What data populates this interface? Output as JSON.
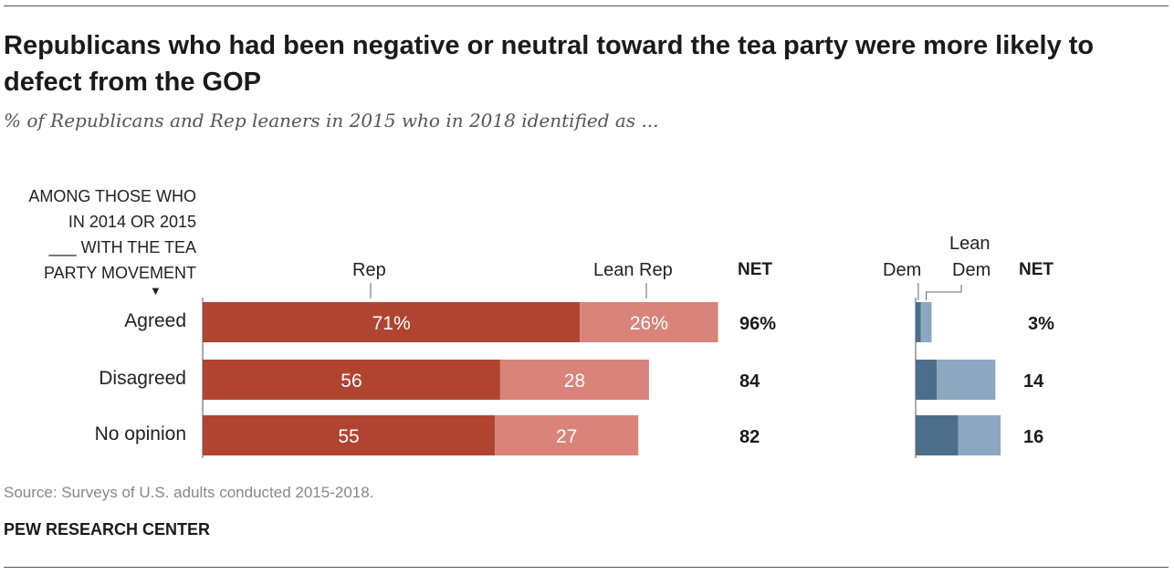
{
  "title": "Republicans who had been negative or neutral toward the tea party were more likely to defect from the GOP",
  "subtitle": "% of Republicans and Rep leaners in 2015 who in 2018 identified as ...",
  "group_head": [
    "AMONG THOSE WHO",
    "IN 2014 OR 2015",
    "___ WITH THE TEA",
    "PARTY MOVEMENT"
  ],
  "arrow_glyph": "▼",
  "colors": {
    "rep": "#b04431",
    "lean_rep": "#d9837a",
    "dem": "#4d6e8a",
    "lean_dem": "#8ba8c0"
  },
  "source": "Source: Surveys of U.S. adults conducted 2015-2018.",
  "org": "PEW RESEARCH CENTER",
  "chart_data": {
    "type": "bar",
    "orientation": "horizontal",
    "stacked": true,
    "categories": [
      "Agreed",
      "Disagreed",
      "No opinion"
    ],
    "series": [
      {
        "name": "Rep",
        "values": [
          71,
          56,
          55
        ],
        "labels": [
          "71%",
          "56",
          "55"
        ]
      },
      {
        "name": "Lean Rep",
        "values": [
          26,
          28,
          27
        ],
        "labels": [
          "26%",
          "28",
          "27"
        ]
      },
      {
        "name": "Dem",
        "values": [
          1,
          4,
          8
        ],
        "labels": [
          "",
          "",
          ""
        ]
      },
      {
        "name": "Lean Dem",
        "values": [
          2,
          11,
          8
        ],
        "labels": [
          "",
          "",
          ""
        ]
      }
    ],
    "column_headers": {
      "rep": "Rep",
      "lean_rep": "Lean Rep",
      "dem": "Dem",
      "lean_dem": [
        "Lean",
        "Dem"
      ],
      "net": "NET"
    },
    "net_rep": [
      "96%",
      "84",
      "82"
    ],
    "net_dem": [
      "3%",
      "14",
      "16"
    ],
    "xlim": [
      0,
      100
    ]
  }
}
